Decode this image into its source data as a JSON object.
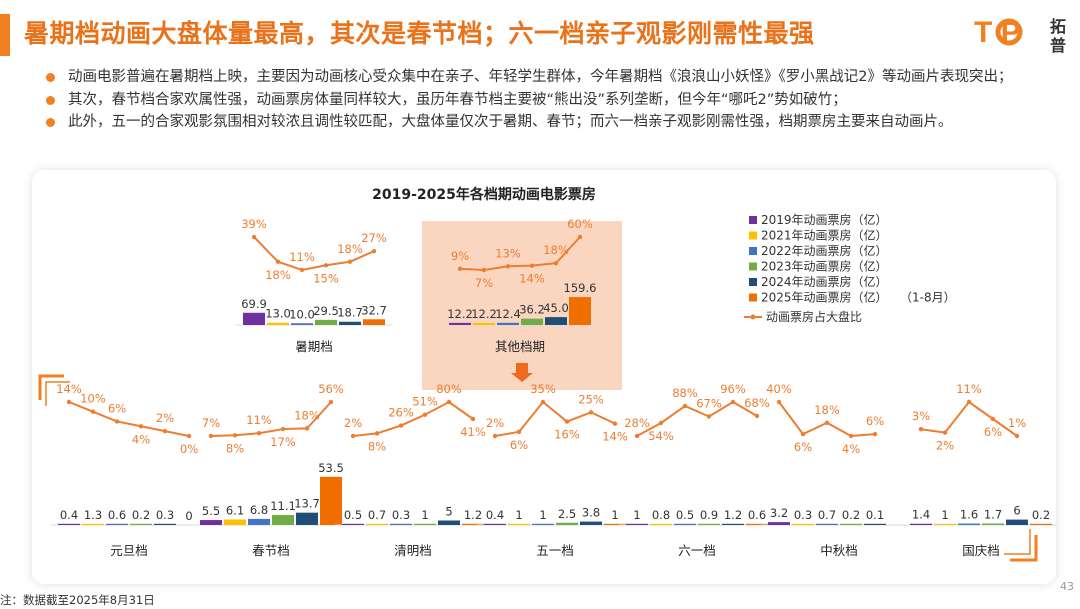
{
  "header": {
    "title": "暑期档动画大盘体量最高，其次是春节档；六一档亲子观影刚需性最强",
    "logo_text": "T P",
    "logo_chars": [
      "拓",
      "普"
    ]
  },
  "bullets": [
    "动画电影普遍在暑期档上映，主要因为动画核心受众集中在亲子、年轻学生群体，今年暑期档《浪浪山小妖怪》《罗小黑战记2》等动画片表现突出；",
    "其次，春节档合家欢属性强，动画票房体量同样较大，虽历年春节档主要被“熊出没”系列垄断，但今年“哪吒2”势如破竹；",
    "此外，五一的合家观影氛围相对较浓且调性较匹配，大盘体量仅次于暑期、春节；而六一档亲子观影刚需性强，档期票房主要来自动画片。"
  ],
  "chart_data": {
    "type": "bar",
    "title": "2019-2025年各档期动画电影票房",
    "legend": {
      "position": "top-right",
      "line_label": "动画票房占大盘比",
      "note": "（1-8月）"
    },
    "series": [
      {
        "name": "2019年动画票房（亿）",
        "color": "#7030a0"
      },
      {
        "name": "2021年动画票房（亿）",
        "color": "#ffc000"
      },
      {
        "name": "2022年动画票房（亿）",
        "color": "#4472c4"
      },
      {
        "name": "2023年动画票房（亿）",
        "color": "#70ad47"
      },
      {
        "name": "2024年动画票房（亿）",
        "color": "#1f4e79"
      },
      {
        "name": "2025年动画票房（亿）",
        "color": "#f06d00"
      }
    ],
    "line_color": "#ed7d31",
    "periods": [
      {
        "name": "暑期档",
        "values": [
          69.9,
          13.0,
          10.0,
          29.5,
          18.7,
          32.7
        ],
        "share": [
          "39%",
          "18%",
          "11%",
          "15%",
          "18%",
          "27%"
        ],
        "bar_labels": [
          "69.9",
          "13.0",
          "10.0",
          "29.5",
          "18.7",
          "32.7"
        ]
      },
      {
        "name": "其他档期",
        "values": [
          12.2,
          12.2,
          12.4,
          36.2,
          45.0,
          159.6
        ],
        "share": [
          "9%",
          "7%",
          "13%",
          "14%",
          "18%",
          "60%"
        ],
        "bar_labels": [
          "12.2",
          "12.2",
          "12.4",
          "36.2",
          "45.0",
          "159.6"
        ]
      },
      {
        "name": "元旦档",
        "values": [
          0.4,
          1.3,
          0.6,
          0.2,
          0.3,
          0
        ],
        "share": [
          "14%",
          "10%",
          "6%",
          "4%",
          "2%",
          "0%"
        ],
        "bar_labels": [
          "0.4",
          "1.3",
          "0.6",
          "0.2",
          "0.3",
          "0"
        ]
      },
      {
        "name": "春节档",
        "values": [
          5.5,
          6.1,
          6.8,
          11.1,
          13.7,
          53.5
        ],
        "share": [
          "7%",
          "8%",
          "11%",
          "17%",
          "18%",
          "56%"
        ],
        "bar_labels": [
          "5.5",
          "6.1",
          "6.8",
          "11.1",
          "13.7",
          "53.5"
        ]
      },
      {
        "name": "清明档",
        "values": [
          0.5,
          0.7,
          0.3,
          1,
          5,
          1.2
        ],
        "share": [
          "2%",
          "8%",
          "26%",
          "51%",
          "80%",
          "41%"
        ],
        "bar_labels": [
          "0.5",
          "0.7",
          "0.3",
          "1",
          "5",
          "1.2"
        ]
      },
      {
        "name": "五一档",
        "values": [
          0.4,
          1,
          1,
          2.5,
          3.8,
          1
        ],
        "share": [
          "2%",
          "6%",
          "35%",
          "16%",
          "25%",
          "14%"
        ],
        "bar_labels": [
          "0.4",
          "1",
          "1",
          "2.5",
          "3.8",
          "1"
        ]
      },
      {
        "name": "六一档",
        "values": [
          1,
          0.8,
          0.5,
          0.9,
          1.2,
          0.6
        ],
        "share": [
          "28%",
          "54%",
          "88%",
          "67%",
          "96%",
          "68%"
        ],
        "bar_labels": [
          "1",
          "0.8",
          "0.5",
          "0.9",
          "1.2",
          "0.6"
        ]
      },
      {
        "name": "中秋档",
        "values": [
          3.2,
          0.3,
          0.7,
          0.2,
          0.1,
          0
        ],
        "share": [
          "40%",
          "6%",
          "18%",
          "4%",
          "6%",
          ""
        ],
        "bar_labels": [
          "3.2",
          "0.3",
          "0.7",
          "0.2",
          "0.1",
          ""
        ]
      },
      {
        "name": "国庆档",
        "values": [
          1.4,
          1,
          1.6,
          1.7,
          6,
          0.2
        ],
        "share": [
          "3%",
          "2%",
          "11%",
          "6%",
          "1%",
          ""
        ],
        "bar_labels": [
          "1.4",
          "1",
          "1.6",
          "1.7",
          "6",
          "0.2"
        ]
      }
    ],
    "share_percent": [
      [
        39,
        18,
        11,
        15,
        18,
        27
      ],
      [
        9,
        7,
        13,
        14,
        18,
        60
      ],
      [
        14,
        10,
        6,
        4,
        2,
        0
      ],
      [
        7,
        8,
        11,
        17,
        18,
        56
      ],
      [
        2,
        8,
        26,
        51,
        80,
        41
      ],
      [
        2,
        6,
        35,
        16,
        25,
        14
      ],
      [
        28,
        54,
        88,
        67,
        96,
        68
      ],
      [
        40,
        6,
        18,
        4,
        6
      ],
      [
        3,
        2,
        11,
        6,
        1
      ]
    ]
  },
  "footnote": "注：数据截至2025年8月31日",
  "page_number": "43"
}
